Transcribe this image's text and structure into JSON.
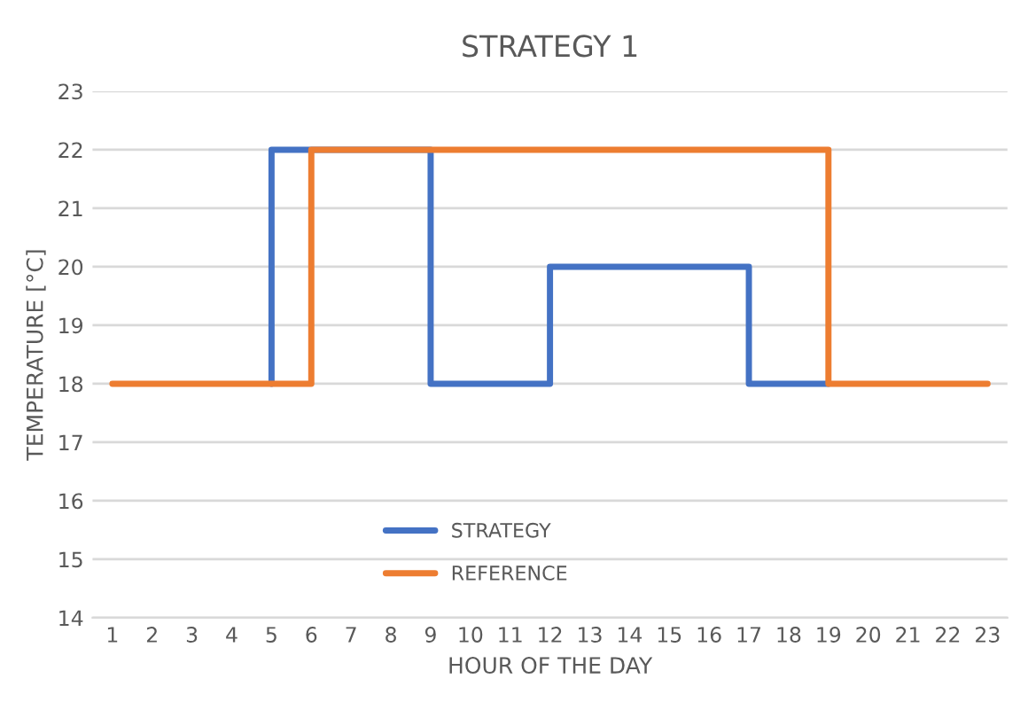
{
  "chart_data": {
    "type": "step",
    "title": "STRATEGY 1",
    "xlabel": "HOUR OF THE DAY",
    "ylabel": "TEMPERATURE [°C]",
    "categories": [
      "1",
      "2",
      "3",
      "4",
      "5",
      "6",
      "7",
      "8",
      "9",
      "10",
      "11",
      "12",
      "13",
      "14",
      "15",
      "16",
      "17",
      "18",
      "19",
      "20",
      "21",
      "22",
      "23"
    ],
    "series": [
      {
        "name": "STRATEGY",
        "color": "#4472c4",
        "values": [
          null,
          null,
          null,
          null,
          18,
          22,
          22,
          22,
          22,
          18,
          18,
          18,
          20,
          20,
          20,
          20,
          20,
          18,
          18,
          null,
          null,
          null,
          null
        ]
      },
      {
        "name": "REFERENCE",
        "color": "#ed7d31",
        "values": [
          18,
          18,
          18,
          18,
          18,
          18,
          22,
          22,
          22,
          22,
          22,
          22,
          22,
          22,
          22,
          22,
          22,
          22,
          22,
          18,
          18,
          18,
          18
        ]
      }
    ],
    "ylim": [
      14,
      23
    ],
    "yticks": [
      14,
      15,
      16,
      17,
      18,
      19,
      20,
      21,
      22,
      23
    ],
    "grid": "y",
    "legend": "bottom",
    "line_style": "solid"
  }
}
